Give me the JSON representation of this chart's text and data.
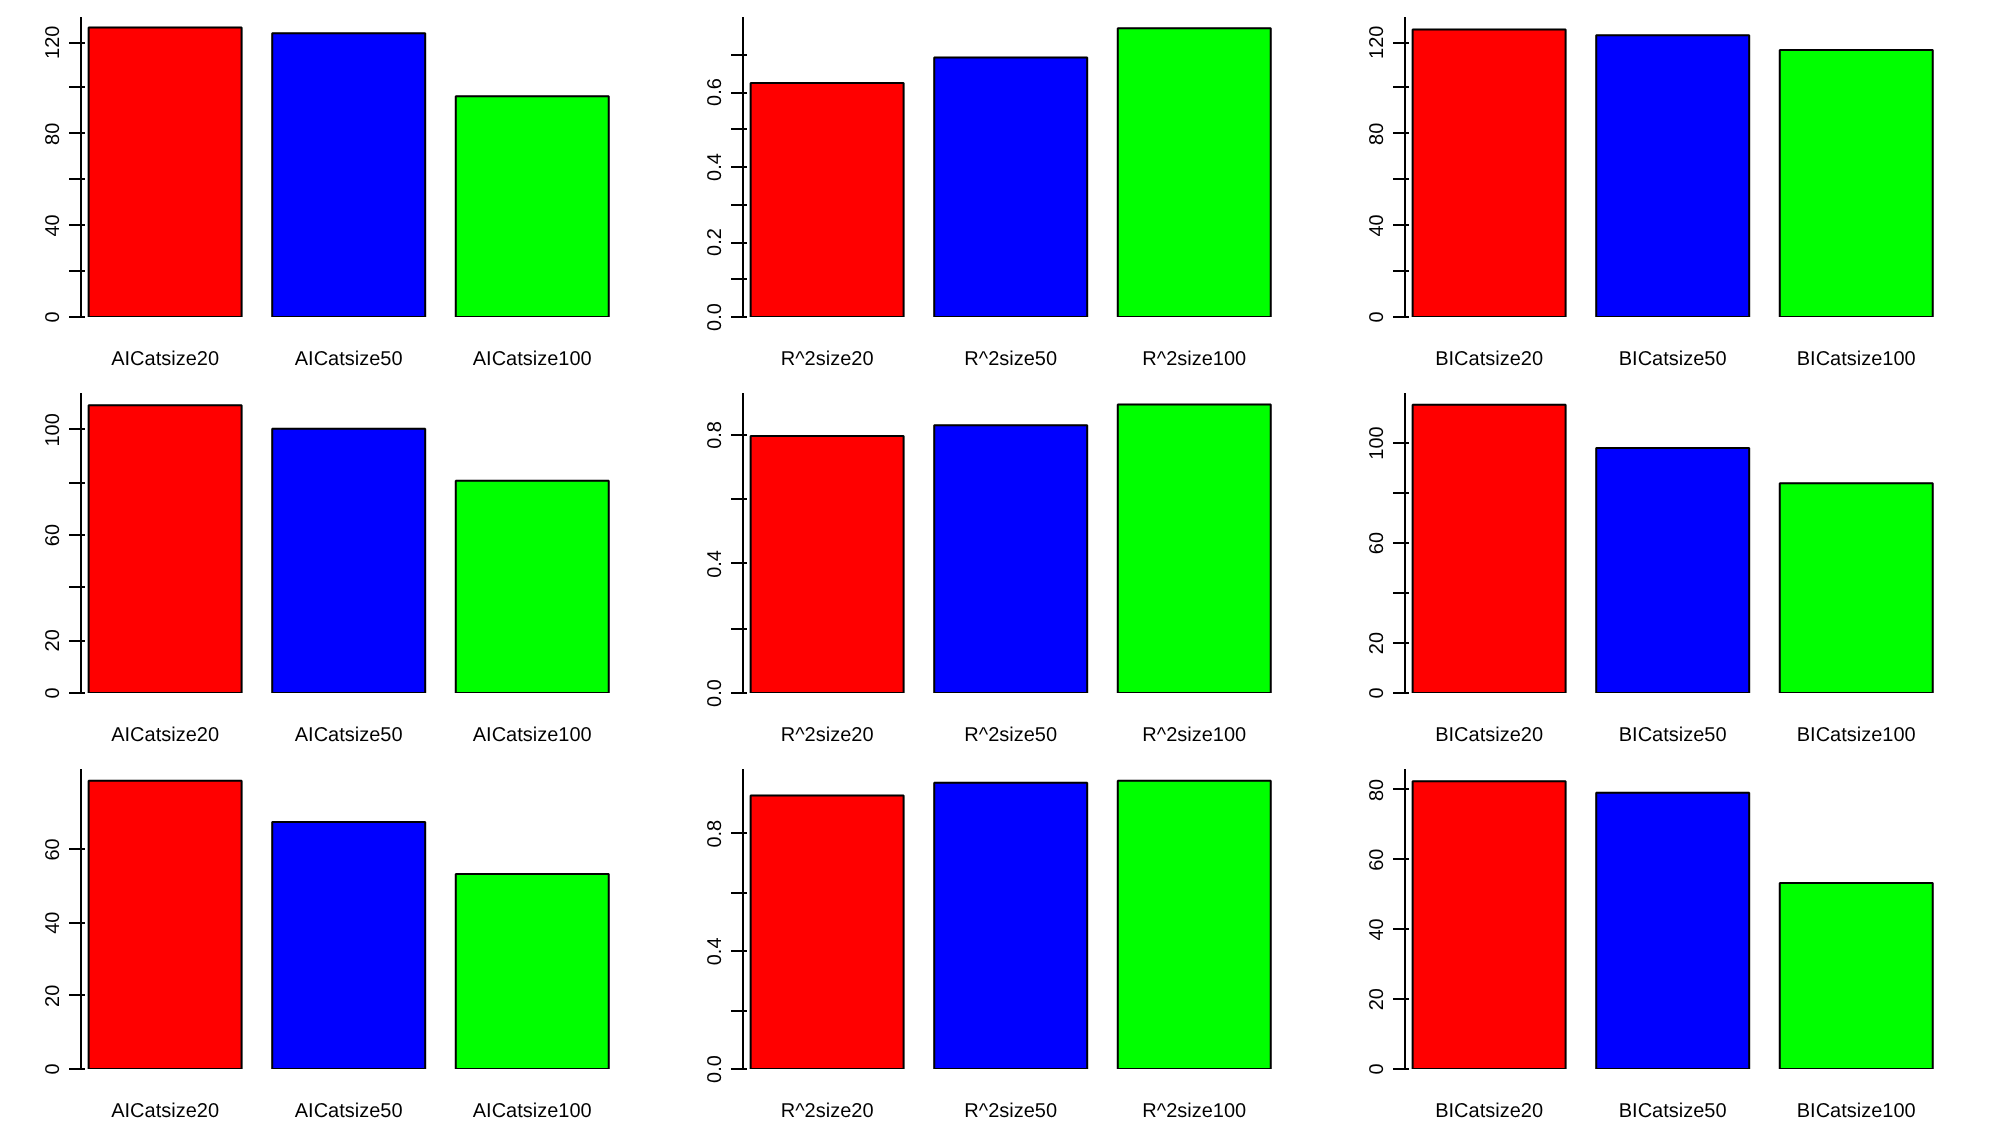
{
  "chart_data": [
    {
      "type": "bar",
      "categories": [
        "AICatsize20",
        "AICatsize50",
        "AICatsize100"
      ],
      "values": [
        126.4,
        123.9,
        96.4
      ],
      "colors": [
        "#ff0000",
        "#0000ff",
        "#00ff00"
      ],
      "ylim": [
        0,
        131
      ],
      "yticks": [
        0,
        {
          "value": 20,
          "label": null
        },
        40,
        {
          "value": 60,
          "label": null
        },
        80,
        {
          "value": 100,
          "label": null
        },
        120
      ],
      "grid": false
    },
    {
      "type": "bar",
      "categories": [
        "R^2size20",
        "R^2size50",
        "R^2size100"
      ],
      "values": [
        0.624,
        0.692,
        0.77
      ],
      "colors": [
        "#ff0000",
        "#0000ff",
        "#00ff00"
      ],
      "ylim": [
        0,
        0.8
      ],
      "yticks": [
        {
          "value": 0,
          "label": "0.0"
        },
        {
          "value": 0.1,
          "label": null
        },
        0.2,
        {
          "value": 0.3,
          "label": null
        },
        0.4,
        {
          "value": 0.5,
          "label": null
        },
        0.6,
        {
          "value": 0.7,
          "label": null
        }
      ],
      "grid": false
    },
    {
      "type": "bar",
      "categories": [
        "BICatsize20",
        "BICatsize50",
        "BICatsize100"
      ],
      "values": [
        125.5,
        123.0,
        116.6
      ],
      "colors": [
        "#ff0000",
        "#0000ff",
        "#00ff00"
      ],
      "ylim": [
        0,
        131
      ],
      "yticks": [
        0,
        {
          "value": 20,
          "label": null
        },
        40,
        {
          "value": 60,
          "label": null
        },
        80,
        {
          "value": 100,
          "label": null
        },
        120
      ],
      "grid": false
    },
    {
      "type": "bar",
      "categories": [
        "AICatsize20",
        "AICatsize50",
        "AICatsize100"
      ],
      "values": [
        109.3,
        100.4,
        80.7
      ],
      "colors": [
        "#ff0000",
        "#0000ff",
        "#00ff00"
      ],
      "ylim": [
        0,
        114
      ],
      "yticks": [
        0,
        20,
        {
          "value": 40,
          "label": null
        },
        60,
        {
          "value": 80,
          "label": null
        },
        100
      ],
      "grid": false
    },
    {
      "type": "bar",
      "categories": [
        "R^2size20",
        "R^2size50",
        "R^2size100"
      ],
      "values": [
        0.797,
        0.83,
        0.894
      ],
      "colors": [
        "#ff0000",
        "#0000ff",
        "#00ff00"
      ],
      "ylim": [
        0,
        0.93
      ],
      "yticks": [
        {
          "value": 0,
          "label": "0.0"
        },
        {
          "value": 0.2,
          "label": null
        },
        0.4,
        {
          "value": 0.6,
          "label": null
        },
        0.8
      ],
      "grid": false
    },
    {
      "type": "bar",
      "categories": [
        "BICatsize20",
        "BICatsize50",
        "BICatsize100"
      ],
      "values": [
        115.3,
        98.0,
        83.9
      ],
      "colors": [
        "#ff0000",
        "#0000ff",
        "#00ff00"
      ],
      "ylim": [
        0,
        120
      ],
      "yticks": [
        0,
        20,
        {
          "value": 40,
          "label": null
        },
        60,
        {
          "value": 80,
          "label": null
        },
        100
      ],
      "grid": false
    },
    {
      "type": "bar",
      "categories": [
        "AICatsize20",
        "AICatsize50",
        "AICatsize100"
      ],
      "values": [
        78.8,
        67.5,
        53.3
      ],
      "colors": [
        "#ff0000",
        "#0000ff",
        "#00ff00"
      ],
      "ylim": [
        0,
        82
      ],
      "yticks": [
        0,
        20,
        40,
        60
      ],
      "grid": false
    },
    {
      "type": "bar",
      "categories": [
        "R^2size20",
        "R^2size50",
        "R^2size100"
      ],
      "values": [
        0.93,
        0.973,
        0.98
      ],
      "colors": [
        "#ff0000",
        "#0000ff",
        "#00ff00"
      ],
      "ylim": [
        0,
        1.02
      ],
      "yticks": [
        {
          "value": 0,
          "label": "0.0"
        },
        {
          "value": 0.2,
          "label": null
        },
        0.4,
        {
          "value": 0.6,
          "label": null
        },
        0.8
      ],
      "grid": false
    },
    {
      "type": "bar",
      "categories": [
        "BICatsize20",
        "BICatsize50",
        "BICatsize100"
      ],
      "values": [
        82.5,
        79.2,
        53.3
      ],
      "colors": [
        "#ff0000",
        "#0000ff",
        "#00ff00"
      ],
      "ylim": [
        0,
        86
      ],
      "yticks": [
        0,
        20,
        40,
        60,
        80
      ],
      "grid": false
    }
  ]
}
